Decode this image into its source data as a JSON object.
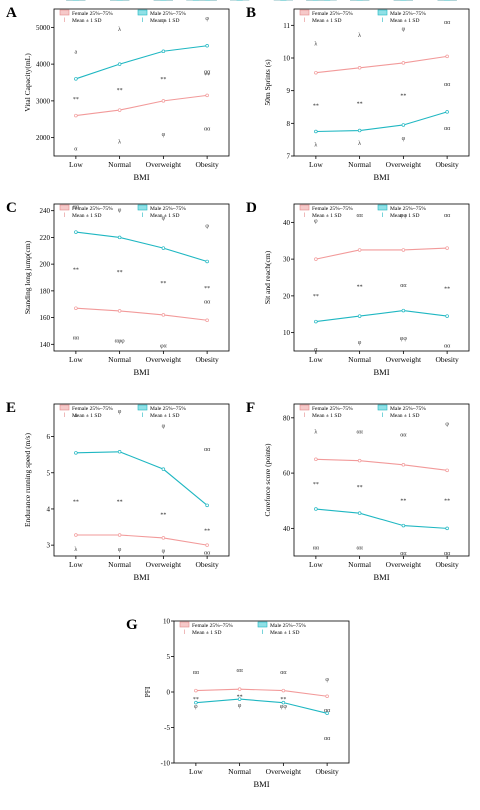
{
  "colors": {
    "female_fill": "#f6c9c9",
    "female_stroke": "#e58a8a",
    "female_line": "#f29a9a",
    "male_fill": "#8fe0e6",
    "male_stroke": "#1fb7c2",
    "male_line": "#1fb7c2"
  },
  "legend": {
    "female_box": "Female 25%~75%",
    "male_box": "Male 25%~75%",
    "female_mean": "Mean ± 1 SD",
    "male_mean": "Mean ± 1 SD"
  },
  "chart_data": [
    {
      "panel": "A",
      "type": "box",
      "xlabel": "BMI",
      "ylabel": "Vital Capacity(mL)",
      "categories": [
        "Low",
        "Normal",
        "Overweight",
        "Obesity"
      ],
      "ylim": [
        1500,
        5500
      ],
      "yticks": [
        2000,
        3000,
        4000,
        5000
      ],
      "series": [
        {
          "name": "Female",
          "q1": [
            2300,
            2450,
            2650,
            2800
          ],
          "q3": [
            2900,
            3050,
            3350,
            3550
          ],
          "mean": [
            2600,
            2750,
            3000,
            3150
          ],
          "lo": [
            1900,
            2000,
            2250,
            2400
          ],
          "hi": [
            3300,
            3400,
            3800,
            4000
          ]
        },
        {
          "name": "Male",
          "q1": [
            3300,
            3550,
            3900,
            4100
          ],
          "q3": [
            4000,
            4450,
            4850,
            4950
          ],
          "mean": [
            3600,
            4000,
            4350,
            4500
          ],
          "lo": [
            2900,
            3100,
            3400,
            3500
          ],
          "hi": [
            4300,
            4900,
            5200,
            5250
          ]
        }
      ],
      "annotations": [
        {
          "cat": 0,
          "y": 3050,
          "text": "**"
        },
        {
          "cat": 1,
          "y": 3300,
          "text": "**"
        },
        {
          "cat": 2,
          "y": 3600,
          "text": "**"
        },
        {
          "cat": 3,
          "y": 3700,
          "text": "**"
        },
        {
          "cat": 0,
          "y": 4350,
          "text": "a"
        },
        {
          "cat": 1,
          "y": 4950,
          "text": "λ"
        },
        {
          "cat": 2,
          "y": 5200,
          "text": "φ"
        },
        {
          "cat": 3,
          "y": 5250,
          "text": "φ"
        },
        {
          "cat": 0,
          "y": 1700,
          "text": "α"
        },
        {
          "cat": 1,
          "y": 1900,
          "text": "λ"
        },
        {
          "cat": 2,
          "y": 2100,
          "text": "φ"
        },
        {
          "cat": 3,
          "y": 2250,
          "text": "αα"
        },
        {
          "cat": 3,
          "y": 3800,
          "text": "αα"
        }
      ]
    },
    {
      "panel": "B",
      "type": "box",
      "xlabel": "BMI",
      "ylabel": "50m Sprints (s)",
      "categories": [
        "Low",
        "Normal",
        "Overweight",
        "Obesity"
      ],
      "ylim": [
        7,
        11.5
      ],
      "yticks": [
        7,
        8,
        9,
        10,
        11
      ],
      "series": [
        {
          "name": "Female",
          "q1": [
            9.2,
            9.3,
            9.4,
            9.6
          ],
          "q3": [
            9.9,
            10.1,
            10.2,
            10.5
          ],
          "mean": [
            9.55,
            9.7,
            9.85,
            10.05
          ],
          "lo": [
            8.7,
            8.8,
            9.0,
            9.1
          ],
          "hi": [
            10.4,
            10.6,
            10.8,
            11.0
          ]
        },
        {
          "name": "Male",
          "q1": [
            7.5,
            7.6,
            7.7,
            8.0
          ],
          "q3": [
            8.05,
            8.1,
            8.3,
            8.8
          ],
          "mean": [
            7.75,
            7.78,
            7.95,
            8.35
          ],
          "lo": [
            7.2,
            7.3,
            7.4,
            7.7
          ],
          "hi": [
            8.3,
            8.4,
            8.6,
            9.0
          ]
        }
      ],
      "annotations": [
        {
          "cat": 0,
          "y": 8.55,
          "text": "**"
        },
        {
          "cat": 1,
          "y": 8.6,
          "text": "**"
        },
        {
          "cat": 2,
          "y": 8.85,
          "text": "**"
        },
        {
          "cat": 3,
          "y": 9.2,
          "text": "αα"
        },
        {
          "cat": 0,
          "y": 10.45,
          "text": "λ"
        },
        {
          "cat": 1,
          "y": 10.7,
          "text": "λ"
        },
        {
          "cat": 2,
          "y": 10.9,
          "text": "φ"
        },
        {
          "cat": 3,
          "y": 11.1,
          "text": "αα"
        },
        {
          "cat": 0,
          "y": 7.35,
          "text": "λ"
        },
        {
          "cat": 1,
          "y": 7.4,
          "text": "λ"
        },
        {
          "cat": 2,
          "y": 7.55,
          "text": "φ"
        },
        {
          "cat": 3,
          "y": 7.85,
          "text": "αα"
        }
      ]
    },
    {
      "panel": "C",
      "type": "box",
      "xlabel": "BMI",
      "ylabel": "Standing long jump(cm)",
      "categories": [
        "Low",
        "Normal",
        "Overweight",
        "Obesity"
      ],
      "ylim": [
        135,
        245
      ],
      "yticks": [
        140,
        160,
        180,
        200,
        220,
        240
      ],
      "series": [
        {
          "name": "Female",
          "q1": [
            158,
            158,
            152,
            148
          ],
          "q3": [
            180,
            176,
            172,
            169
          ],
          "mean": [
            167,
            165,
            162,
            158
          ],
          "lo": [
            148,
            146,
            142,
            136
          ],
          "hi": [
            186,
            184,
            182,
            178
          ]
        },
        {
          "name": "Male",
          "q1": [
            212,
            210,
            203,
            188
          ],
          "q3": [
            236,
            234,
            226,
            214
          ],
          "mean": [
            224,
            220,
            212,
            202
          ],
          "lo": [
            205,
            200,
            194,
            178
          ],
          "hi": [
            242,
            240,
            234,
            228
          ]
        }
      ],
      "annotations": [
        {
          "cat": 0,
          "y": 196,
          "text": "**"
        },
        {
          "cat": 1,
          "y": 194,
          "text": "**"
        },
        {
          "cat": 2,
          "y": 186,
          "text": "**"
        },
        {
          "cat": 3,
          "y": 182,
          "text": "**"
        },
        {
          "cat": 0,
          "y": 243,
          "text": "αα"
        },
        {
          "cat": 1,
          "y": 241,
          "text": "φ"
        },
        {
          "cat": 2,
          "y": 235,
          "text": "φ"
        },
        {
          "cat": 3,
          "y": 229,
          "text": "φ"
        },
        {
          "cat": 0,
          "y": 145,
          "text": "αα"
        },
        {
          "cat": 1,
          "y": 143,
          "text": "αφφ"
        },
        {
          "cat": 2,
          "y": 139,
          "text": "φα"
        },
        {
          "cat": 3,
          "y": 172,
          "text": "αα"
        }
      ]
    },
    {
      "panel": "D",
      "type": "box",
      "xlabel": "BMI",
      "ylabel": "Sit and reach(cm)",
      "categories": [
        "Low",
        "Normal",
        "Overweight",
        "Obesity"
      ],
      "ylim": [
        5,
        45
      ],
      "yticks": [
        10,
        20,
        30,
        40
      ],
      "series": [
        {
          "name": "Female",
          "q1": [
            23,
            27,
            27,
            28
          ],
          "q3": [
            37,
            39,
            38,
            39
          ],
          "mean": [
            30,
            32.5,
            32.5,
            33
          ],
          "lo": [
            17,
            22,
            24,
            25
          ],
          "hi": [
            40,
            42,
            42,
            42
          ]
        },
        {
          "name": "Male",
          "q1": [
            8.5,
            10,
            11,
            10
          ],
          "q3": [
            17.5,
            19.5,
            20.5,
            20
          ],
          "mean": [
            13,
            14.5,
            16,
            14.5
          ],
          "lo": [
            6,
            8,
            9,
            7
          ],
          "hi": [
            20,
            22.5,
            23,
            22
          ]
        }
      ],
      "annotations": [
        {
          "cat": 0,
          "y": 20,
          "text": "**"
        },
        {
          "cat": 1,
          "y": 22.5,
          "text": "**"
        },
        {
          "cat": 2,
          "y": 23,
          "text": "αα"
        },
        {
          "cat": 3,
          "y": 22,
          "text": "**"
        },
        {
          "cat": 0,
          "y": 40.5,
          "text": "φ"
        },
        {
          "cat": 1,
          "y": 42,
          "text": "αα"
        },
        {
          "cat": 2,
          "y": 42,
          "text": "φφ"
        },
        {
          "cat": 3,
          "y": 42,
          "text": "αα"
        },
        {
          "cat": 0,
          "y": 5.5,
          "text": "α"
        },
        {
          "cat": 1,
          "y": 7.5,
          "text": "φ"
        },
        {
          "cat": 2,
          "y": 8.5,
          "text": "φφ"
        },
        {
          "cat": 3,
          "y": 6.5,
          "text": "αα"
        }
      ]
    },
    {
      "panel": "E",
      "type": "box",
      "xlabel": "BMI",
      "ylabel": "Endurance running speed (m/s)",
      "categories": [
        "Low",
        "Normal",
        "Overweight",
        "Obesity"
      ],
      "ylim": [
        2.7,
        6.9
      ],
      "yticks": [
        3,
        4,
        5,
        6
      ],
      "series": [
        {
          "name": "Female",
          "q1": [
            3.1,
            3.1,
            3.05,
            2.9
          ],
          "q3": [
            3.45,
            3.45,
            3.35,
            3.15
          ],
          "mean": [
            3.28,
            3.28,
            3.2,
            3.0
          ],
          "lo": [
            2.95,
            2.95,
            2.9,
            2.75
          ],
          "hi": [
            3.6,
            3.6,
            3.55,
            3.3
          ]
        },
        {
          "name": "Male",
          "q1": [
            4.95,
            4.95,
            4.4,
            3.3
          ],
          "q3": [
            6.25,
            6.35,
            5.75,
            4.95
          ],
          "mean": [
            5.55,
            5.58,
            5.1,
            4.1
          ],
          "lo": [
            4.5,
            4.5,
            3.95,
            2.95
          ],
          "hi": [
            6.6,
            6.7,
            6.3,
            5.65
          ]
        }
      ],
      "annotations": [
        {
          "cat": 0,
          "y": 4.2,
          "text": "**"
        },
        {
          "cat": 1,
          "y": 4.2,
          "text": "**"
        },
        {
          "cat": 2,
          "y": 3.85,
          "text": "**"
        },
        {
          "cat": 3,
          "y": 3.4,
          "text": "**"
        },
        {
          "cat": 0,
          "y": 6.6,
          "text": "a"
        },
        {
          "cat": 1,
          "y": 6.7,
          "text": "φ"
        },
        {
          "cat": 2,
          "y": 6.3,
          "text": "φ"
        },
        {
          "cat": 3,
          "y": 5.65,
          "text": "αα"
        },
        {
          "cat": 0,
          "y": 2.9,
          "text": "λ"
        },
        {
          "cat": 1,
          "y": 2.9,
          "text": "φ"
        },
        {
          "cat": 2,
          "y": 2.85,
          "text": "φ"
        },
        {
          "cat": 3,
          "y": 2.8,
          "text": "αα"
        }
      ]
    },
    {
      "panel": "F",
      "type": "box",
      "xlabel": "BMI",
      "ylabel": "Coreforce score (points)",
      "categories": [
        "Low",
        "Normal",
        "Overweight",
        "Obesity"
      ],
      "ylim": [
        30,
        85
      ],
      "yticks": [
        40,
        60,
        80
      ],
      "series": [
        {
          "name": "Female",
          "q1": [
            60,
            59,
            58,
            56
          ],
          "q3": [
            70,
            72,
            70,
            68
          ],
          "mean": [
            65,
            64.5,
            63,
            61
          ],
          "lo": [
            56,
            55,
            53,
            51
          ],
          "hi": [
            75,
            75,
            74,
            73
          ]
        },
        {
          "name": "Male",
          "q1": [
            38,
            38,
            34,
            33
          ],
          "q3": [
            56,
            52,
            48,
            47
          ],
          "mean": [
            47,
            45.5,
            41,
            40
          ],
          "lo": [
            34,
            34,
            32,
            32
          ],
          "hi": [
            60,
            58,
            52,
            50
          ]
        }
      ],
      "annotations": [
        {
          "cat": 0,
          "y": 56,
          "text": "**"
        },
        {
          "cat": 1,
          "y": 55,
          "text": "**"
        },
        {
          "cat": 2,
          "y": 50,
          "text": "**"
        },
        {
          "cat": 3,
          "y": 50,
          "text": "**"
        },
        {
          "cat": 0,
          "y": 75,
          "text": "λ"
        },
        {
          "cat": 1,
          "y": 75,
          "text": "αα"
        },
        {
          "cat": 2,
          "y": 74,
          "text": "αα"
        },
        {
          "cat": 3,
          "y": 78,
          "text": "φ"
        },
        {
          "cat": 0,
          "y": 33,
          "text": "αα"
        },
        {
          "cat": 1,
          "y": 33,
          "text": "αα"
        },
        {
          "cat": 2,
          "y": 31,
          "text": "αα"
        },
        {
          "cat": 3,
          "y": 31,
          "text": "αα"
        }
      ]
    },
    {
      "panel": "G",
      "type": "box",
      "xlabel": "BMI",
      "ylabel": "PFI",
      "categories": [
        "Low",
        "Normal",
        "Overweight",
        "Obesity"
      ],
      "ylim": [
        -10,
        10
      ],
      "yticks": [
        -10,
        -5,
        0,
        5,
        10
      ],
      "series": [
        {
          "name": "Female",
          "q1": [
            -0.5,
            -0.3,
            -0.5,
            -1.5
          ],
          "q3": [
            1.5,
            1.8,
            1.5,
            0.5
          ],
          "mean": [
            0.2,
            0.4,
            0.2,
            -0.6
          ],
          "lo": [
            -1.5,
            -1.3,
            -1.5,
            -2.8
          ],
          "hi": [
            2.5,
            2.8,
            2.5,
            1.5
          ]
        },
        {
          "name": "Male",
          "q1": [
            -3.0,
            -2.5,
            -3.0,
            -5.5
          ],
          "q3": [
            -0.5,
            0.0,
            -0.3,
            -1.5
          ],
          "mean": [
            -1.5,
            -1.0,
            -1.5,
            -3.0
          ],
          "lo": [
            -3.5,
            -3.2,
            -3.8,
            -6.2
          ],
          "hi": [
            0.8,
            1.2,
            0.8,
            -0.2
          ]
        }
      ],
      "annotations": [
        {
          "cat": 0,
          "y": -1.0,
          "text": "**"
        },
        {
          "cat": 1,
          "y": -0.6,
          "text": "**"
        },
        {
          "cat": 2,
          "y": -1.0,
          "text": "**"
        },
        {
          "cat": 3,
          "y": -2.5,
          "text": "αα"
        },
        {
          "cat": 0,
          "y": 2.8,
          "text": "αα"
        },
        {
          "cat": 1,
          "y": 3.1,
          "text": "αα"
        },
        {
          "cat": 2,
          "y": 2.8,
          "text": "αα"
        },
        {
          "cat": 3,
          "y": 1.8,
          "text": "φ"
        },
        {
          "cat": 0,
          "y": -2.0,
          "text": "φ"
        },
        {
          "cat": 1,
          "y": -1.8,
          "text": "φ"
        },
        {
          "cat": 2,
          "y": -2.0,
          "text": "φφ"
        },
        {
          "cat": 3,
          "y": -6.5,
          "text": "αα"
        }
      ]
    }
  ]
}
